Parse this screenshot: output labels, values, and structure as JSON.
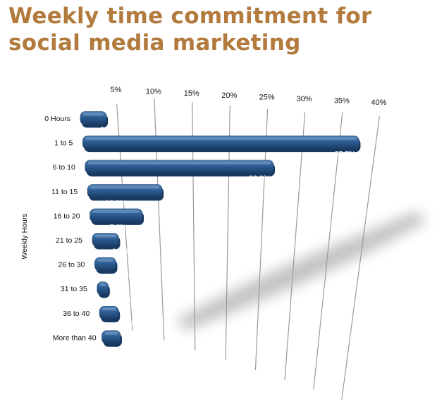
{
  "colors": {
    "title": "#b27a3c",
    "bar": "#2d5c92",
    "bar_top": "#4c80b8",
    "bar_dark": "#183a62",
    "grid": "#9a9a9a"
  },
  "chart_data": {
    "type": "bar",
    "orientation": "horizontal",
    "title": "Weekly time commitment for social media marketing",
    "ylabel": "Weekly Hours",
    "xlabel": "",
    "x_ticks": [
      "5%",
      "10%",
      "15%",
      "20%",
      "25%",
      "30%",
      "35%",
      "40%"
    ],
    "xlim": [
      0,
      40
    ],
    "categories": [
      "0 Hours",
      "1 to 5",
      "6 to 10",
      "11 to 15",
      "16 to 20",
      "21 to 25",
      "26 to 30",
      "31 to 35",
      "36 to 40",
      "More than 40"
    ],
    "values": [
      3.5,
      37.7,
      26.2,
      10.6,
      7.6,
      3.9,
      3.2,
      1.4,
      3.0,
      3.0
    ],
    "data_labels": [
      "3.5%",
      "37.7%",
      "26.2%",
      "10.6%",
      "7.6%",
      "3.9%",
      "3.2%",
      "1.4%",
      "3.0%",
      "3.0%"
    ],
    "grid": true,
    "legend": "none"
  }
}
